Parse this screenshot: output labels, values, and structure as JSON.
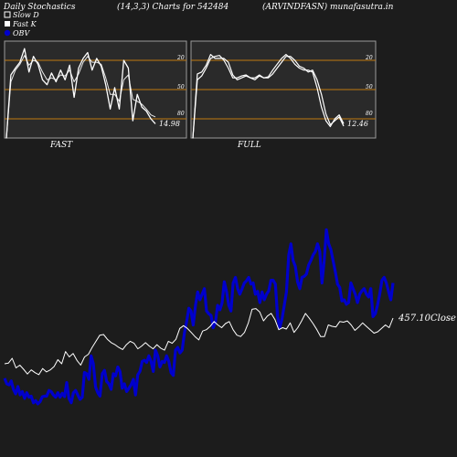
{
  "header": {
    "left": "Daily Stochastics",
    "center": "(14,3,3) Charts for 542484",
    "right": "(ARVINDFASN) munafasutra.in"
  },
  "legend": [
    {
      "label": "Slow  D",
      "color": "#ffffff",
      "marker": "hollow-square"
    },
    {
      "label": "Fast K",
      "color": "#ffffff",
      "marker": "filled-square"
    },
    {
      "label": "OBV",
      "color": "#0000cc",
      "marker": "filled-circle"
    }
  ],
  "colors": {
    "background": "#1c1c1c",
    "panel": "#2a2a2a",
    "grid": "#c07a10",
    "obv": "#0000cc",
    "price": "#ffffff"
  },
  "chart_data": [
    {
      "type": "line",
      "panel": "fast",
      "label": "FAST",
      "ylim": [
        0,
        100
      ],
      "ticks": [
        20,
        50,
        80
      ],
      "last_value_label": "14.98",
      "series": [
        {
          "name": "Fast K",
          "values": [
            0,
            65,
            72,
            78,
            92,
            68,
            84,
            76,
            60,
            55,
            67,
            58,
            70,
            60,
            75,
            42,
            72,
            82,
            88,
            70,
            82,
            74,
            55,
            30,
            52,
            30,
            80,
            72,
            18,
            45,
            32,
            28,
            20,
            14.98
          ]
        },
        {
          "name": "Slow  D",
          "values": [
            0,
            58,
            70,
            76,
            85,
            75,
            80,
            78,
            68,
            60,
            62,
            60,
            65,
            64,
            70,
            58,
            66,
            78,
            84,
            78,
            78,
            76,
            62,
            45,
            45,
            38,
            60,
            65,
            40,
            38,
            35,
            30,
            24,
            22
          ]
        }
      ]
    },
    {
      "type": "line",
      "panel": "full",
      "label": "FULL",
      "ylim": [
        0,
        100
      ],
      "ticks": [
        20,
        50,
        80
      ],
      "last_value_label": "12.46",
      "series": [
        {
          "name": "Slow  D",
          "values": [
            0,
            66,
            68,
            75,
            86,
            82,
            82,
            82,
            78,
            65,
            60,
            62,
            64,
            62,
            62,
            65,
            62,
            62,
            66,
            72,
            78,
            84,
            84,
            80,
            74,
            72,
            68,
            70,
            60,
            45,
            25,
            14,
            18,
            22,
            12.46
          ]
        },
        {
          "name": "Fast K",
          "values": [
            0,
            60,
            64,
            72,
            82,
            84,
            85,
            80,
            72,
            62,
            62,
            64,
            65,
            62,
            60,
            64,
            62,
            63,
            70,
            76,
            82,
            86,
            82,
            76,
            72,
            70,
            70,
            68,
            52,
            32,
            18,
            12,
            20,
            24,
            15
          ]
        }
      ]
    },
    {
      "type": "line",
      "panel": "price-obv",
      "last_value_label": "457.10Close",
      "series": [
        {
          "name": "Close",
          "values": [
            390,
            391,
            398,
            384,
            388,
            382,
            375,
            381,
            377,
            374,
            383,
            378,
            381,
            386,
            396,
            390,
            408,
            400,
            405,
            395,
            388,
            400,
            404,
            414,
            423,
            432,
            433,
            426,
            421,
            418,
            414,
            411,
            418,
            423,
            420,
            412,
            416,
            421,
            416,
            412,
            418,
            413,
            410,
            423,
            420,
            426,
            442,
            446,
            442,
            436,
            430,
            425,
            438,
            440,
            445,
            452,
            447,
            443,
            449,
            452,
            440,
            432,
            430,
            436,
            450,
            470,
            471,
            466,
            453,
            460,
            464,
            455,
            440,
            443,
            441,
            450,
            436,
            443,
            453,
            464,
            457,
            449,
            440,
            430,
            430,
            447,
            445,
            444,
            452,
            451,
            453,
            447,
            439,
            444,
            450,
            445,
            440,
            435,
            437,
            442,
            447,
            443,
            457.1
          ]
        },
        {
          "name": "OBV",
          "values": [
            100,
            90,
            88,
            95,
            80,
            72,
            85,
            70,
            76,
            64,
            74,
            66,
            68,
            56,
            60,
            54,
            58,
            67,
            68,
            68,
            78,
            76,
            70,
            66,
            74,
            66,
            73,
            67,
            92,
            64,
            56,
            74,
            78,
            70,
            62,
            66,
            110,
            108,
            98,
            140,
            126,
            84,
            74,
            68,
            108,
            114,
            94,
            90,
            80,
            108,
            104,
            120,
            112,
            82,
            90,
            76,
            82,
            88,
            98,
            70,
            106,
            112,
            130,
            132,
            128,
            140,
            130,
            112,
            150,
            140,
            120,
            130,
            128,
            140,
            130,
            110,
            105,
            150,
            155,
            145,
            150,
            180,
            200,
            225,
            220,
            195,
            230,
            254,
            240,
            250,
            260,
            220,
            215,
            212,
            190,
            200,
            230,
            222,
            235,
            272,
            254,
            230,
            220,
            270,
            280,
            260,
            250,
            260,
            270,
            274,
            280,
            268,
            270,
            250,
            255,
            235,
            254,
            240,
            250,
            256,
            275,
            275,
            268,
            210,
            190,
            206,
            230,
            254,
            320,
            340,
            310,
            300,
            272,
            260,
            280,
            282,
            286,
            302,
            310,
            320,
            326,
            340,
            326,
            270,
            310,
            365,
            340,
            330,
            310,
            290,
            268,
            262,
            238,
            240,
            232,
            235,
            270,
            260,
            250,
            235,
            250,
            256,
            260,
            250,
            245,
            260,
            210,
            215,
            230,
            250,
            275,
            280,
            270,
            255,
            240,
            270
          ]
        }
      ]
    }
  ]
}
